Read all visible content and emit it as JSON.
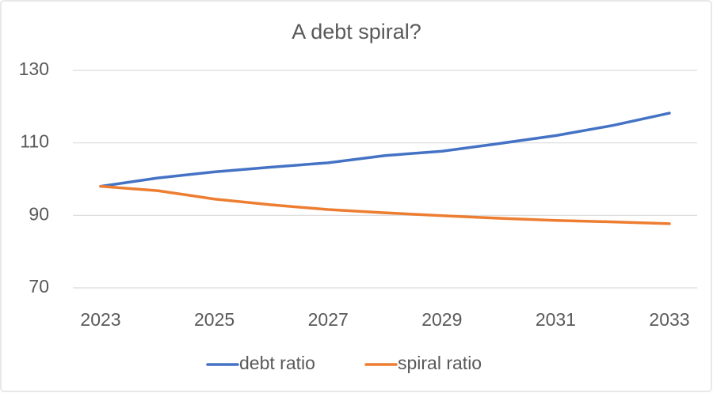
{
  "chart_data": {
    "type": "line",
    "title": "A debt spiral?",
    "x": [
      2023,
      2024,
      2025,
      2026,
      2027,
      2028,
      2029,
      2030,
      2031,
      2032,
      2033
    ],
    "xlim": [
      2023,
      2033
    ],
    "xticks": [
      2023,
      2025,
      2027,
      2029,
      2031,
      2033
    ],
    "ylim": [
      70,
      130
    ],
    "yticks": [
      70,
      90,
      110,
      130
    ],
    "grid": true,
    "legend": "bottom",
    "series": [
      {
        "name": "debt ratio",
        "color": "#4472c4",
        "values": [
          98,
          100.3,
          102,
          103.3,
          104.5,
          106.5,
          107.7,
          109.8,
          112,
          114.8,
          118.2
        ]
      },
      {
        "name": "spiral ratio",
        "color": "#ed7d31",
        "values": [
          98,
          96.8,
          94.5,
          92.9,
          91.6,
          90.7,
          89.9,
          89.2,
          88.6,
          88.2,
          87.7
        ]
      }
    ]
  }
}
